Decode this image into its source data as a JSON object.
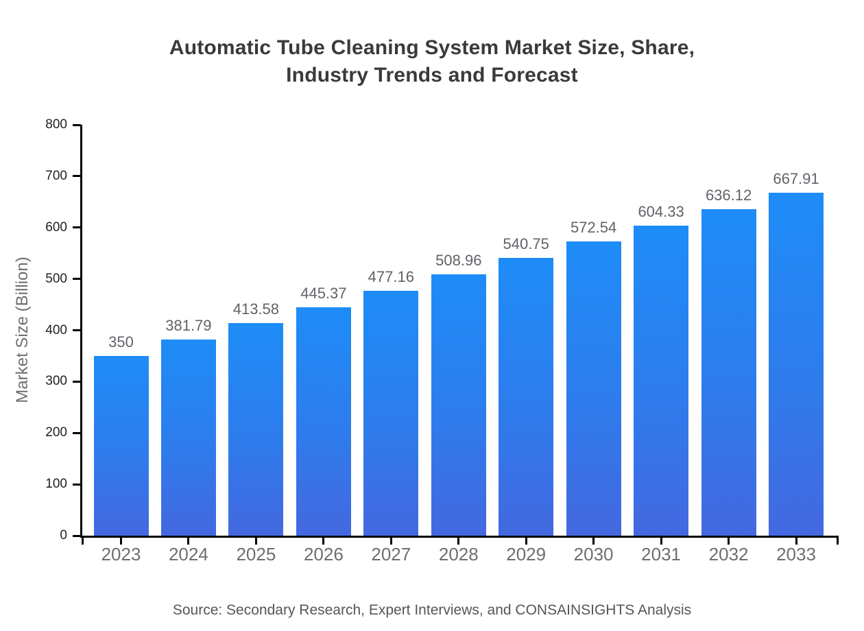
{
  "chart_data": {
    "type": "bar",
    "title_lines": [
      "Automatic Tube Cleaning System Market Size, Share,",
      "Industry Trends and Forecast"
    ],
    "title": "Automatic Tube Cleaning System Market Size, Share, Industry Trends and Forecast",
    "xlabel": "",
    "ylabel": "Market Size (Billion)",
    "categories": [
      "2023",
      "2024",
      "2025",
      "2026",
      "2027",
      "2028",
      "2029",
      "2030",
      "2031",
      "2032",
      "2033"
    ],
    "values": [
      350,
      381.79,
      413.58,
      445.37,
      477.16,
      508.96,
      540.75,
      572.54,
      604.33,
      636.12,
      667.91
    ],
    "value_labels": [
      "350",
      "381.79",
      "413.58",
      "445.37",
      "477.16",
      "508.96",
      "540.75",
      "572.54",
      "604.33",
      "636.12",
      "667.91"
    ],
    "yticks": [
      0,
      100,
      200,
      300,
      400,
      500,
      600,
      700,
      800
    ],
    "ylim": [
      0,
      800
    ],
    "grid": false,
    "legend_position": "none",
    "source": "Source: Secondary Research, Expert Interviews, and CONSAINSIGHTS Analysis",
    "colors": {
      "bar_gradient_top": "#1E8CF7",
      "bar_gradient_bottom": "#4468E0",
      "title_text": "#3a3a3a",
      "axis_line": "#000000",
      "y_tick_label": "#1f1f1f",
      "x_tick_label": "#6e6e6e",
      "value_label": "#5f6368",
      "axis_title": "#6f6f6f",
      "source_text": "#565656",
      "background": "#ffffff"
    }
  }
}
